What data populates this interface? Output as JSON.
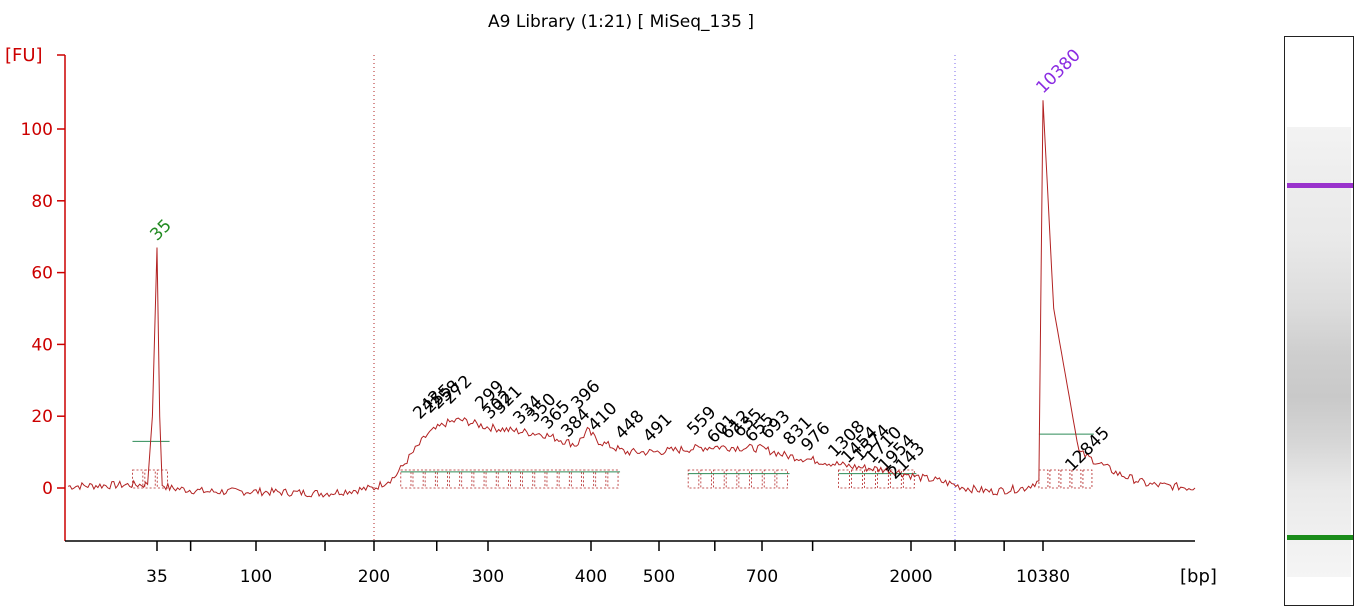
{
  "chart_data": {
    "type": "line",
    "title": "A9 Library (1:21)  [ MiSeq_135 ]",
    "ylabel": "[FU]",
    "xlabel": "[bp]",
    "ylim": [
      -15,
      120
    ],
    "y_ticks": [
      "0",
      "20",
      "40",
      "60",
      "80",
      "100"
    ],
    "x_ticks": [
      "35",
      "100",
      "200",
      "300",
      "400",
      "500",
      "700",
      "2000",
      "10380"
    ],
    "grid": false,
    "colors": {
      "axis": "#cc0000",
      "trace": "#b22222",
      "lower_marker": "#228b22",
      "upper_marker": "#8a2be2",
      "baseline": "#2e8b57",
      "label": "#000000"
    },
    "markers": [
      {
        "label": "35",
        "size_bp": 35,
        "height_fu": 67,
        "color": "#228b22"
      },
      {
        "label": "10380",
        "size_bp": 10380,
        "height_fu": 108,
        "color": "#8a2be2"
      }
    ],
    "peak_labels": [
      "242",
      "255",
      "258",
      "272",
      "299",
      "302",
      "321",
      "334",
      "350",
      "365",
      "384",
      "396",
      "410",
      "448",
      "491",
      "559",
      "601",
      "612",
      "635",
      "655",
      "693",
      "831",
      "976",
      "1308",
      "1454",
      "1574",
      "1710",
      "1954",
      "2143",
      "12845"
    ],
    "regions": [
      {
        "from": 220,
        "to": 440,
        "level_fu": 4.5
      },
      {
        "from": 550,
        "to": 850,
        "level_fu": 4
      },
      {
        "from": 1200,
        "to": 2100,
        "level_fu": 4
      },
      {
        "from": 9800,
        "to": 12000,
        "level_fu": 15
      },
      {
        "from": 30,
        "to": 40,
        "level_fu": 13
      }
    ],
    "series": [
      {
        "values_bp": [
          20,
          33,
          34,
          35,
          36,
          37,
          40,
          60,
          100,
          150,
          200,
          215,
          230,
          242,
          258,
          272,
          299,
          321,
          350,
          384,
          396,
          410,
          448,
          491,
          559,
          601,
          700,
          831,
          976,
          1308,
          1710,
          2143,
          2600,
          3500,
          5000,
          8000,
          9800,
          10100,
          10380,
          10700,
          11500,
          12845,
          14000,
          16000
        ],
        "values_fu": [
          0.5,
          1,
          20,
          67,
          20,
          1,
          0,
          -1,
          -1,
          -1.5,
          0,
          3,
          10,
          15,
          18,
          19,
          17,
          16,
          15,
          12,
          16,
          13,
          10,
          10,
          11,
          11.5,
          11,
          9,
          8,
          6,
          5,
          3,
          2,
          0,
          -1,
          0,
          2,
          60,
          108,
          50,
          10,
          4,
          1,
          0
        ]
      }
    ],
    "gel": {
      "upper_band_color": "#9932cc",
      "lower_band_color": "#1a8c1a"
    }
  }
}
